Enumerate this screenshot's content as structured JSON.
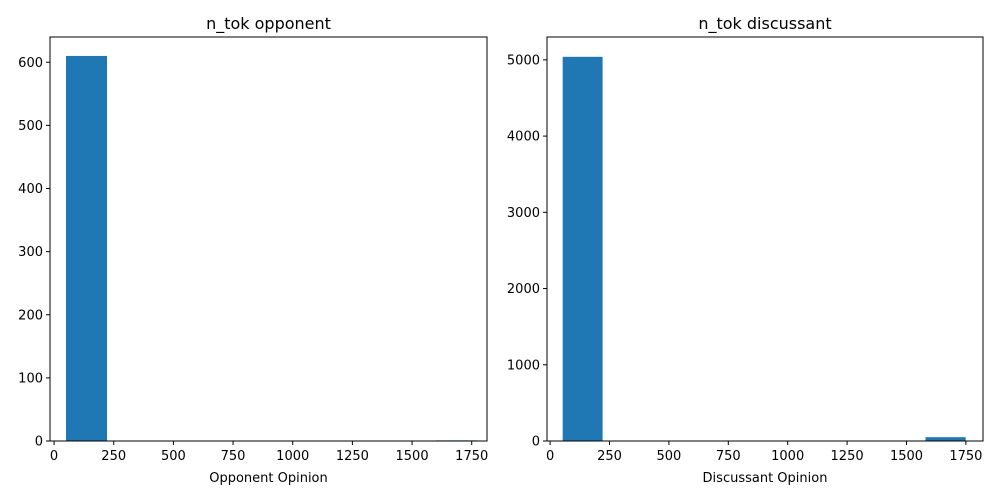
{
  "bar_color": "#1f77b4",
  "chart_data": [
    {
      "type": "bar",
      "title": "n_tok opponent",
      "xlabel": "Opponent Opinion",
      "ylabel": "",
      "xlim": [
        -17,
        1814
      ],
      "ylim": [
        0,
        640
      ],
      "xticks": [
        0,
        250,
        500,
        750,
        1000,
        1250,
        1500,
        1750
      ],
      "yticks": [
        0,
        100,
        200,
        300,
        400,
        500,
        600
      ],
      "bins": [
        {
          "x0": 50,
          "x1": 222,
          "count": 610
        },
        {
          "x0": 1601,
          "x1": 1774,
          "count": 1
        }
      ],
      "grid": false
    },
    {
      "type": "bar",
      "title": "n_tok discussant",
      "xlabel": "Discussant Opinion",
      "ylabel": "",
      "xlim": [
        -13,
        1822
      ],
      "ylim": [
        0,
        5300
      ],
      "xticks": [
        0,
        250,
        500,
        750,
        1000,
        1250,
        1500,
        1750
      ],
      "yticks": [
        0,
        1000,
        2000,
        3000,
        4000,
        5000
      ],
      "bins": [
        {
          "x0": 53,
          "x1": 221,
          "count": 5040
        },
        {
          "x0": 1580,
          "x1": 1749,
          "count": 50
        }
      ],
      "grid": false
    }
  ]
}
